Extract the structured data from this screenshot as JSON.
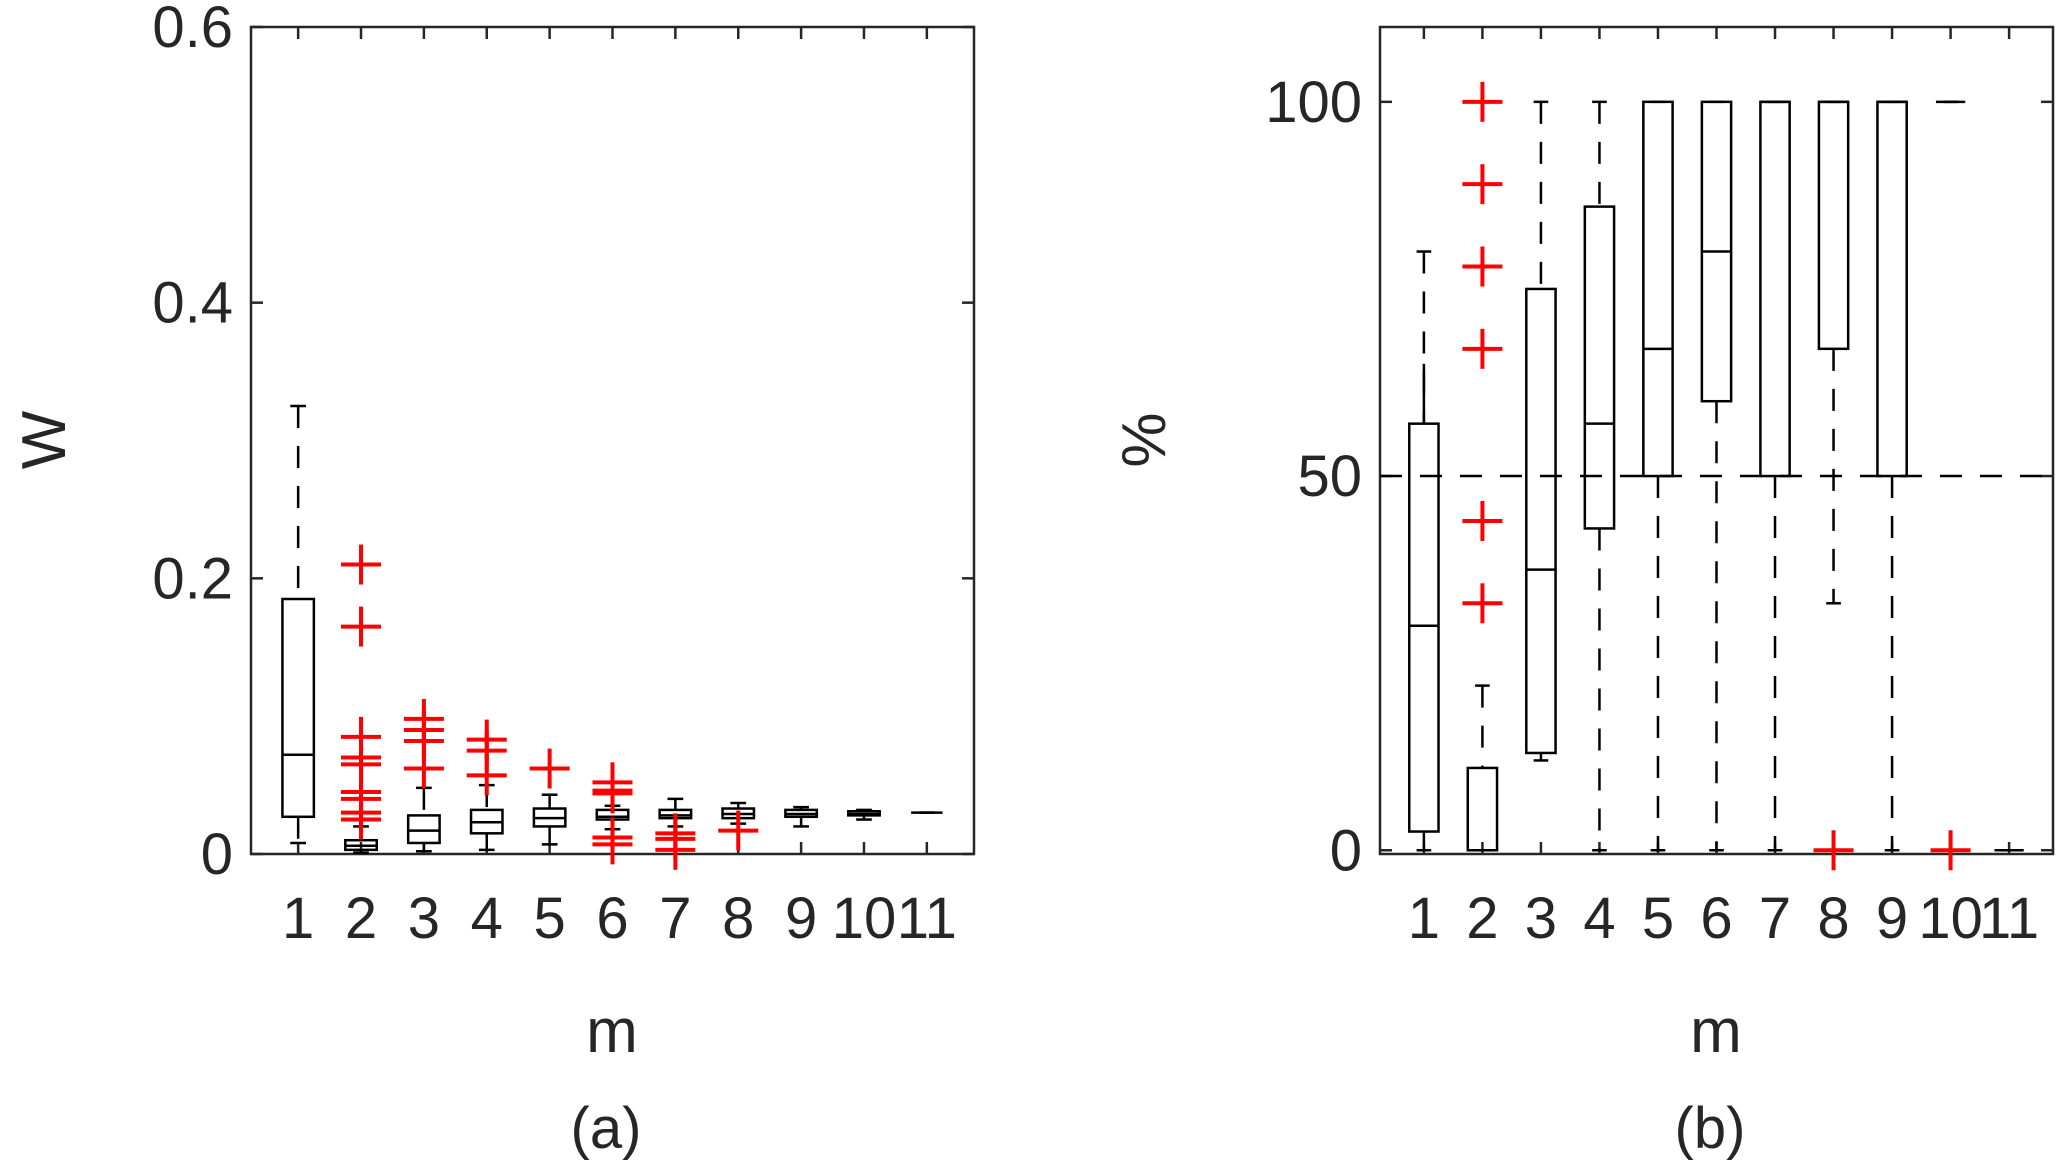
{
  "chart_data": [
    {
      "type": "box",
      "caption": "(a)",
      "xlabel": "m",
      "ylabel": "W",
      "ylim": [
        0,
        0.6
      ],
      "yticks": [
        "0",
        "0.2",
        "0.4",
        "0.6"
      ],
      "categories": [
        "1",
        "2",
        "3",
        "4",
        "5",
        "6",
        "7",
        "8",
        "9",
        "10",
        "11"
      ],
      "boxes": [
        {
          "min": 0.008,
          "q1": 0.027,
          "median": 0.072,
          "q3": 0.185,
          "max": 0.325,
          "outliers": []
        },
        {
          "min": 0.001,
          "q1": 0.003,
          "median": 0.006,
          "q3": 0.01,
          "max": 0.02,
          "outliers": [
            0.21,
            0.165,
            0.085,
            0.07,
            0.065,
            0.045,
            0.04,
            0.03,
            0.025
          ]
        },
        {
          "min": 0.002,
          "q1": 0.008,
          "median": 0.017,
          "q3": 0.028,
          "max": 0.048,
          "outliers": [
            0.098,
            0.09,
            0.082,
            0.062
          ]
        },
        {
          "min": 0.003,
          "q1": 0.015,
          "median": 0.023,
          "q3": 0.032,
          "max": 0.05,
          "outliers": [
            0.083,
            0.075,
            0.057
          ]
        },
        {
          "min": 0.007,
          "q1": 0.02,
          "median": 0.026,
          "q3": 0.033,
          "max": 0.043,
          "outliers": [
            0.062
          ]
        },
        {
          "min": 0.018,
          "q1": 0.025,
          "median": 0.027,
          "q3": 0.032,
          "max": 0.035,
          "outliers": [
            0.052,
            0.046,
            0.044,
            0.012,
            0.007
          ]
        },
        {
          "min": 0.02,
          "q1": 0.026,
          "median": 0.028,
          "q3": 0.032,
          "max": 0.04,
          "outliers": [
            0.015,
            0.011,
            0.003
          ]
        },
        {
          "min": 0.022,
          "q1": 0.026,
          "median": 0.029,
          "q3": 0.033,
          "max": 0.037,
          "outliers": [
            0.017
          ]
        },
        {
          "min": 0.02,
          "q1": 0.027,
          "median": 0.029,
          "q3": 0.032,
          "max": 0.034,
          "outliers": []
        },
        {
          "min": 0.025,
          "q1": 0.028,
          "median": 0.029,
          "q3": 0.031,
          "max": 0.032,
          "outliers": []
        },
        {
          "min": 0.03,
          "q1": 0.03,
          "median": 0.03,
          "q3": 0.03,
          "max": 0.03,
          "outliers": []
        }
      ]
    },
    {
      "type": "box",
      "caption": "(b)",
      "xlabel": "m",
      "ylabel": "%",
      "ylim": [
        -0.5,
        110
      ],
      "yticks": [
        "0",
        "50",
        "100"
      ],
      "ytick_values": [
        0,
        50,
        100
      ],
      "categories": [
        "1",
        "2",
        "3",
        "4",
        "5",
        "6",
        "7",
        "8",
        "9",
        "10",
        "11"
      ],
      "boxes": [
        {
          "min": 0,
          "q1": 2.5,
          "median": 30,
          "q3": 57,
          "max": 80,
          "extra_max": 65,
          "outliers": []
        },
        {
          "min": 0,
          "q1": 0,
          "median": 0,
          "q3": 11,
          "max": 22,
          "outliers": [
            100,
            89,
            78,
            67,
            44,
            33
          ]
        },
        {
          "min": 12,
          "q1": 13,
          "median": 37.5,
          "q3": 75,
          "max": 100,
          "outliers": []
        },
        {
          "min": 0,
          "q1": 43,
          "median": 57,
          "q3": 86,
          "max": 100,
          "outliers": []
        },
        {
          "min": 0,
          "q1": 50,
          "median": 67,
          "q3": 100,
          "max": 100,
          "outliers": []
        },
        {
          "min": 0,
          "q1": 60,
          "median": 80,
          "q3": 100,
          "max": 100,
          "outliers": []
        },
        {
          "min": 0,
          "q1": 50,
          "median": 100,
          "q3": 100,
          "max": 100,
          "outliers": []
        },
        {
          "min": 33,
          "q1": 67,
          "median": 100,
          "q3": 100,
          "max": 100,
          "outliers": [
            0
          ]
        },
        {
          "min": 0,
          "q1": 50,
          "median": 100,
          "q3": 100,
          "max": 100,
          "outliers": []
        },
        {
          "min": 100,
          "q1": 100,
          "median": 100,
          "q3": 100,
          "max": 100,
          "outliers": [
            0
          ]
        },
        {
          "min": 0,
          "q1": 0,
          "median": 0,
          "q3": 0,
          "max": 0,
          "outliers": []
        }
      ],
      "reference_line": 50
    }
  ]
}
